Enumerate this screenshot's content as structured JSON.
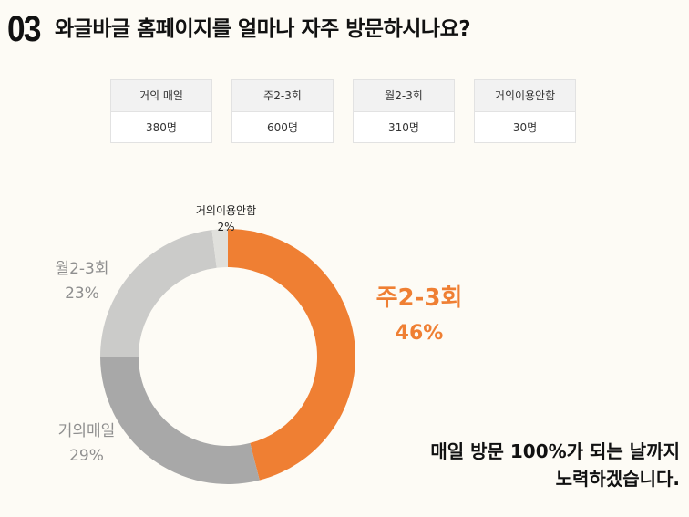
{
  "header": {
    "number": "03",
    "title": "와글바글 홈페이지를 얼마나 자주 방문하시나요?"
  },
  "cards": [
    {
      "label": "거의 매일",
      "value": "380명"
    },
    {
      "label": "주2-3회",
      "value": "600명"
    },
    {
      "label": "월2-3회",
      "value": "310명"
    },
    {
      "label": "거의이용안함",
      "value": "30명"
    }
  ],
  "chart_data": {
    "type": "pie",
    "donut": true,
    "slices": [
      {
        "label": "주2-3회",
        "percent": "46%",
        "value": 46,
        "color": "#ef7f33",
        "label_color": "#ef7f33"
      },
      {
        "label": "거의매일",
        "percent": "29%",
        "value": 29,
        "color": "#a8a8a8",
        "label_color": "#8f8f8f"
      },
      {
        "label": "월2-3회",
        "percent": "23%",
        "value": 23,
        "color": "#cbcbc9",
        "label_color": "#8f8f8f"
      },
      {
        "label": "거의이용안함",
        "percent": "2%",
        "value": 2,
        "color": "#e0e0dc",
        "label_color": "#222222"
      }
    ]
  },
  "closing": {
    "line1": "매일 방문 100%가 되는 날까지",
    "line2": "노력하겠습니다."
  }
}
